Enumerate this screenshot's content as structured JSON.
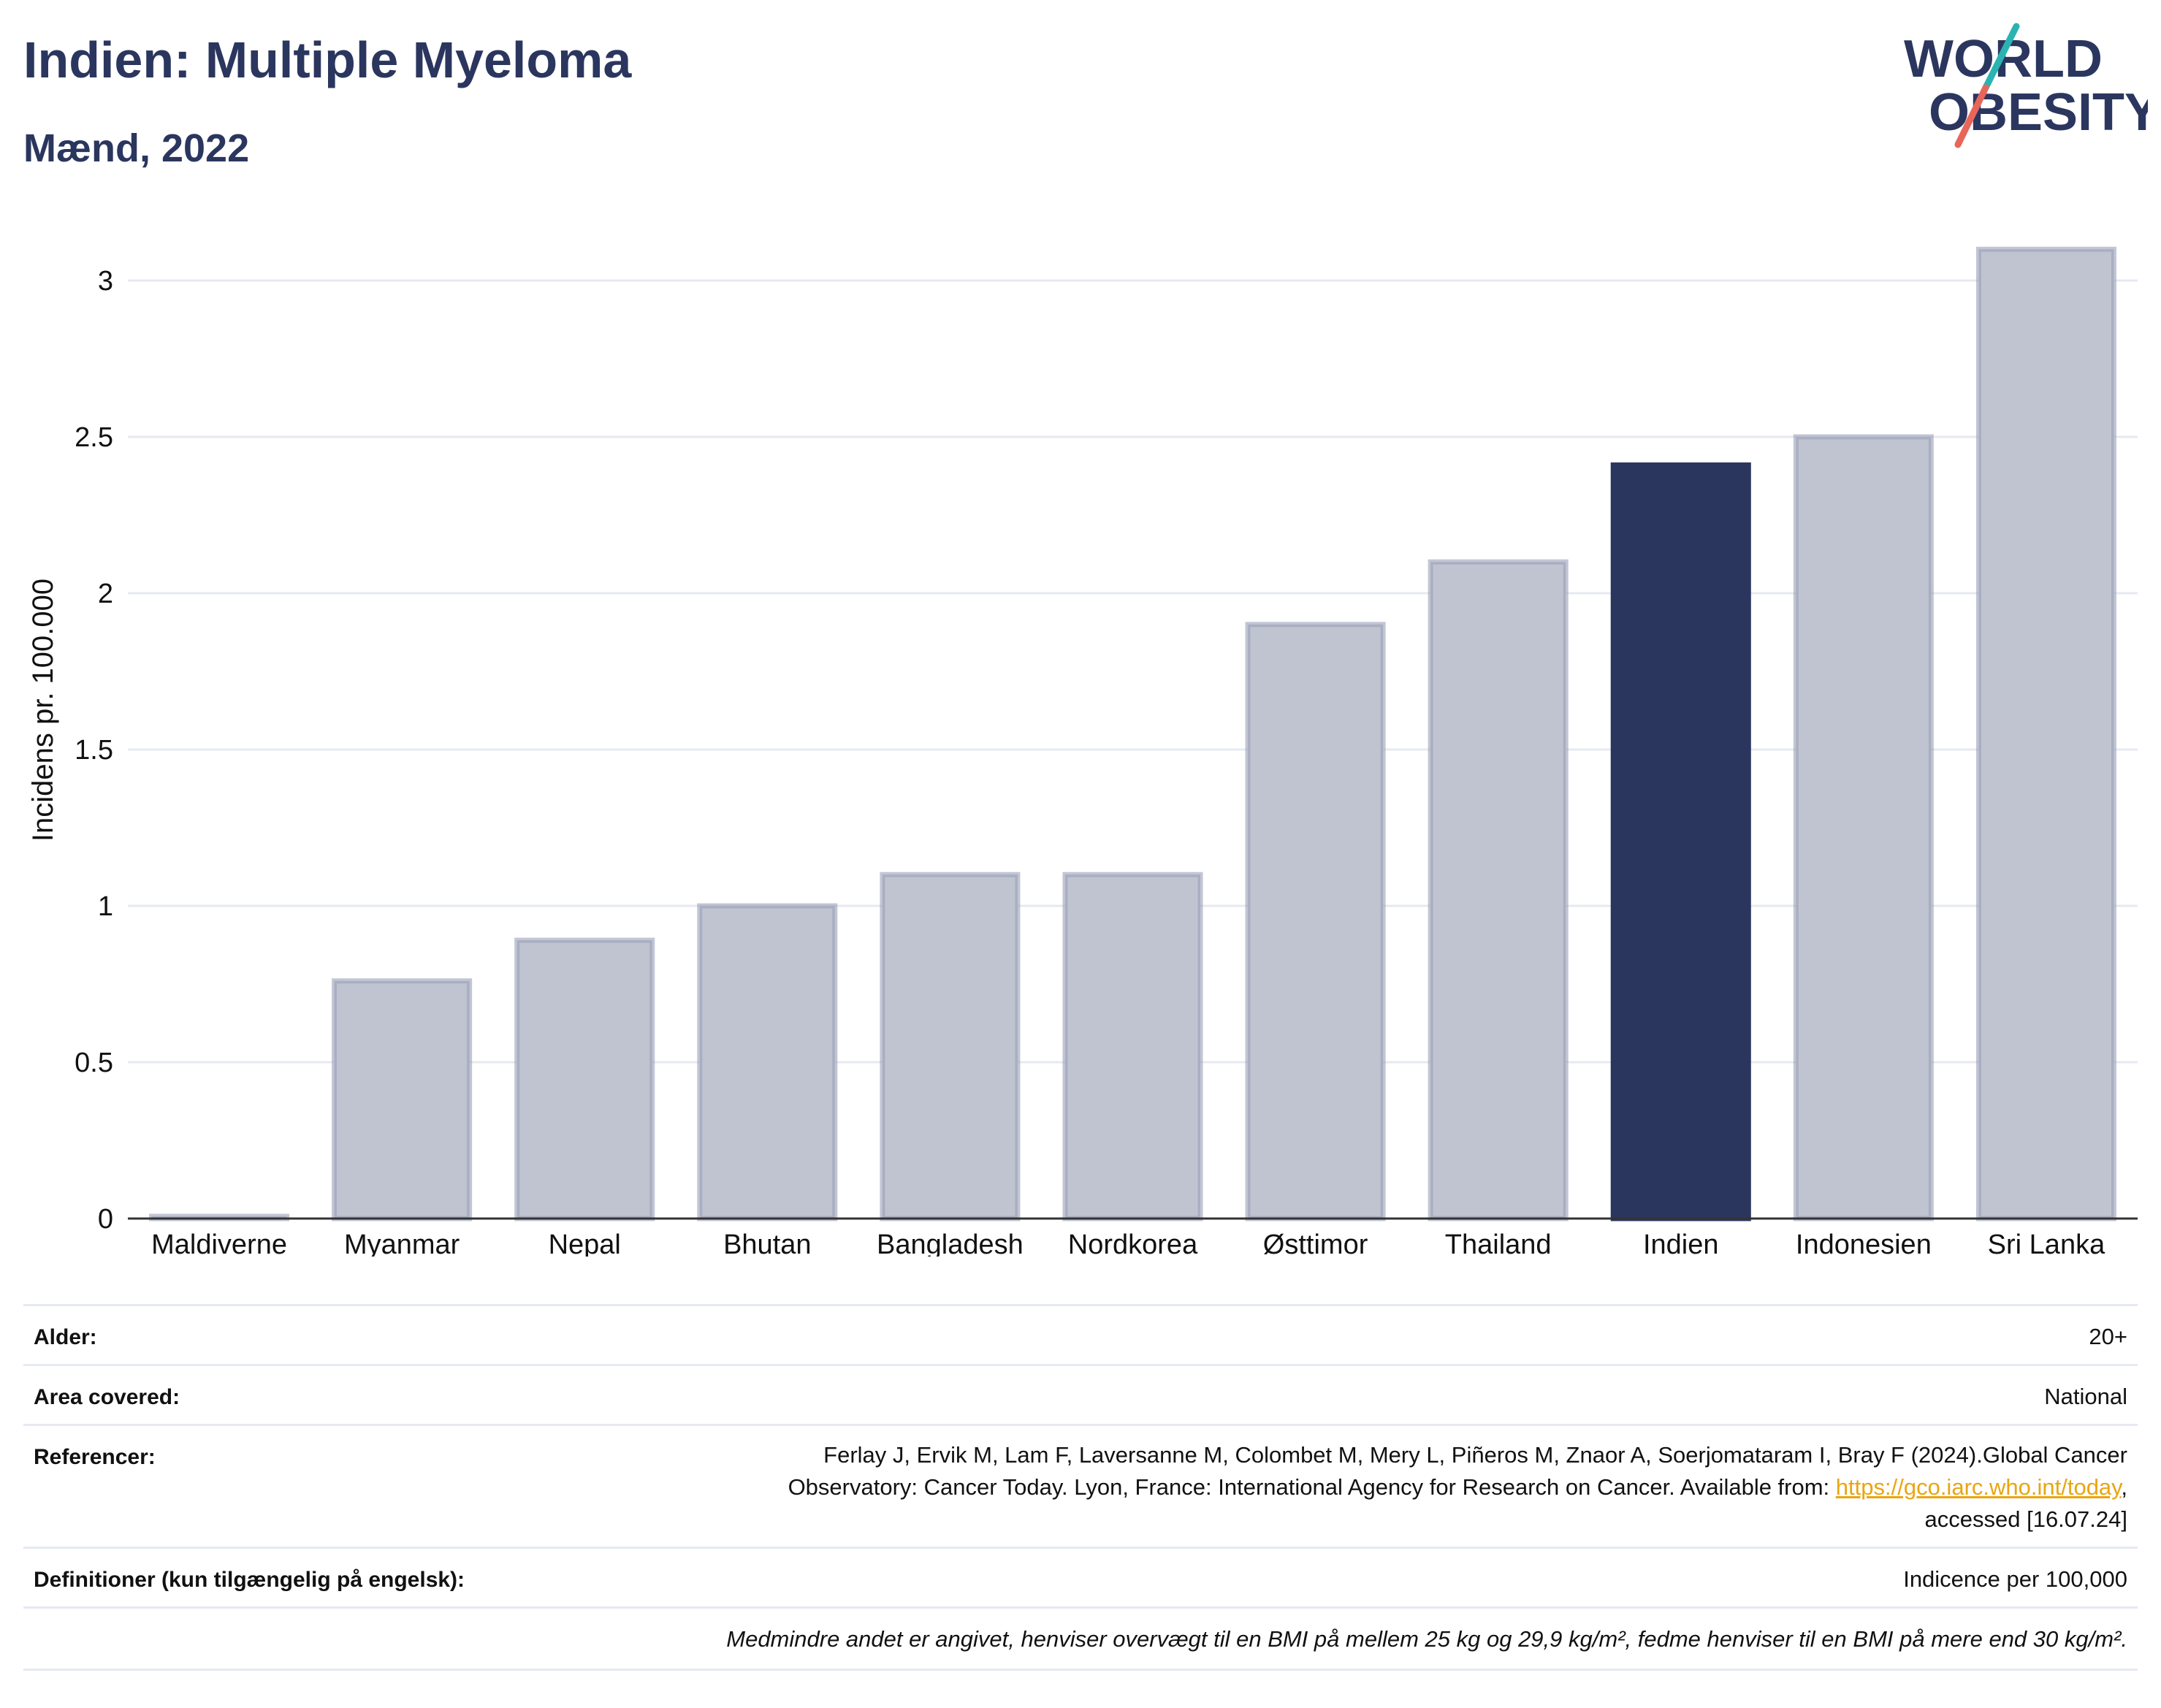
{
  "header": {
    "title": "Indien: Multiple Myeloma",
    "subtitle": "Mænd, 2022"
  },
  "logo": {
    "line1": "WORLD",
    "line2": "OBESITY"
  },
  "chart_data": {
    "type": "bar",
    "title": "Indien: Multiple Myeloma",
    "subtitle": "Mænd, 2022",
    "ylabel": "Incidens pr. 100.000",
    "xlabel": "",
    "categories": [
      "Maldiverne",
      "Myanmar",
      "Nepal",
      "Bhutan",
      "Bangladesh",
      "Nordkorea",
      "Østtimor",
      "Thailand",
      "Indien",
      "Indonesien",
      "Sri Lanka"
    ],
    "values": [
      0.0,
      0.76,
      0.89,
      1.0,
      1.1,
      1.1,
      1.9,
      2.1,
      2.41,
      2.5,
      3.1
    ],
    "highlight": "Indien",
    "yticks": [
      0,
      0.5,
      1,
      1.5,
      2,
      2.5,
      3
    ],
    "ytick_labels": [
      "0",
      "0.5",
      "1",
      "1.5",
      "2",
      "2.5",
      "3"
    ],
    "ylim": [
      0,
      3.1
    ],
    "grid": true,
    "colors": {
      "bar": "#c0c4d1",
      "bar_outline": "#9aa0b7",
      "highlight": "#2b365f"
    }
  },
  "info": {
    "age_label": "Alder:",
    "age_value": "20+",
    "area_label": "Area covered:",
    "area_value": "National",
    "ref_label": "Referencer:",
    "ref_line1": "Ferlay J, Ervik M, Lam F, Laversanne M, Colombet M, Mery L, Piñeros M, Znaor A, Soerjomataram I, Bray F (2024).Global Cancer",
    "ref_line2": "Observatory: Cancer Today. Lyon, France: International Agency for Research on Cancer. Available from: ",
    "ref_link": "https://gco.iarc.who.int/today",
    "ref_line2_end": ",",
    "ref_line3": "accessed [16.07.24]",
    "def_label": "Definitioner (kun tilgængelig på engelsk):",
    "def_value": "Indicence per 100,000",
    "note": "Medmindre andet er angivet, henviser overvægt til en BMI på mellem 25 kg og 29,9 kg/m², fedme henviser til en BMI på mere end 30 kg/m²."
  }
}
